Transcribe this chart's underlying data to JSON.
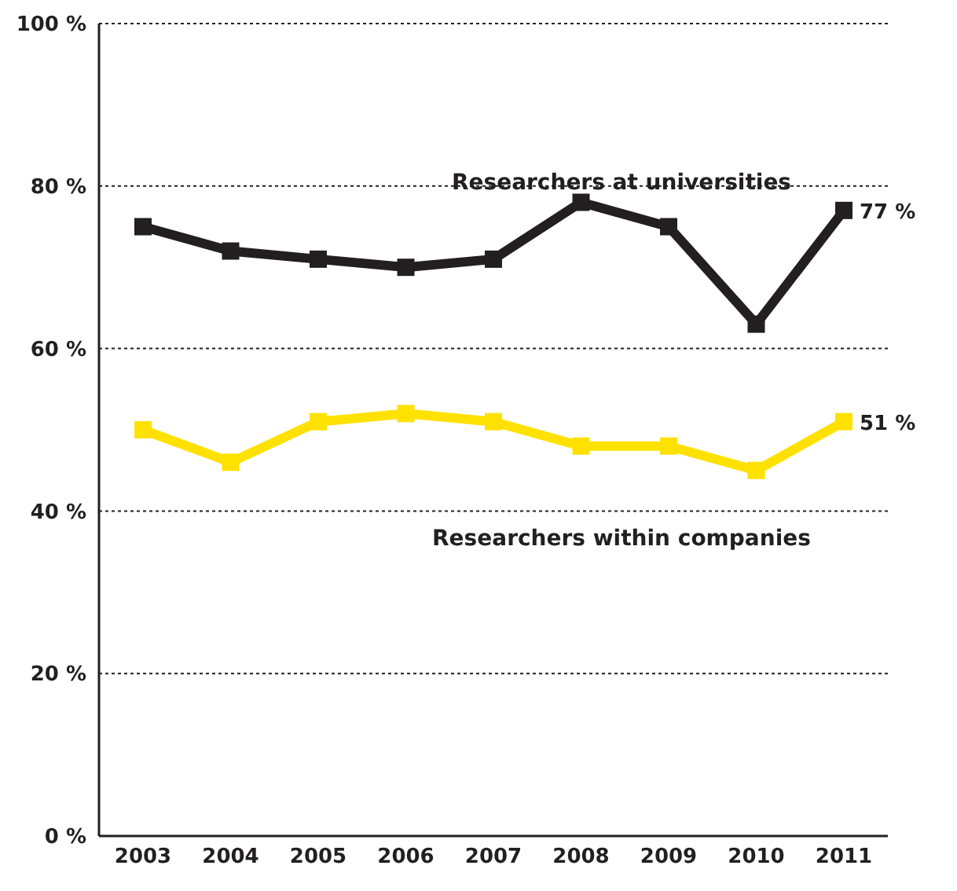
{
  "chart_data": {
    "type": "line",
    "categories": [
      "2003",
      "2004",
      "2005",
      "2006",
      "2007",
      "2008",
      "2009",
      "2010",
      "2011"
    ],
    "series": [
      {
        "name": "Researchers at universities",
        "color": "#231f20",
        "values": [
          75,
          72,
          71,
          70,
          71,
          78,
          75,
          63,
          77
        ],
        "value_labels": [
          null,
          null,
          null,
          null,
          null,
          null,
          null,
          null,
          "77 %"
        ]
      },
      {
        "name": "Researchers within companies",
        "color": "#ffe100",
        "values": [
          50,
          46,
          51,
          52,
          51,
          48,
          48,
          45,
          51
        ],
        "value_labels": [
          null,
          null,
          null,
          null,
          null,
          null,
          null,
          null,
          "51 %"
        ]
      }
    ],
    "ylim": [
      0,
      100
    ],
    "yticks": [
      {
        "value": 0,
        "label": "0 %"
      },
      {
        "value": 20,
        "label": "20 %"
      },
      {
        "value": 40,
        "label": "40 %"
      },
      {
        "value": 60,
        "label": "60 %"
      },
      {
        "value": 80,
        "label": "80 %"
      },
      {
        "value": 100,
        "label": "100 %"
      }
    ],
    "grid": "y",
    "marker": "square",
    "line_style": "solid"
  }
}
